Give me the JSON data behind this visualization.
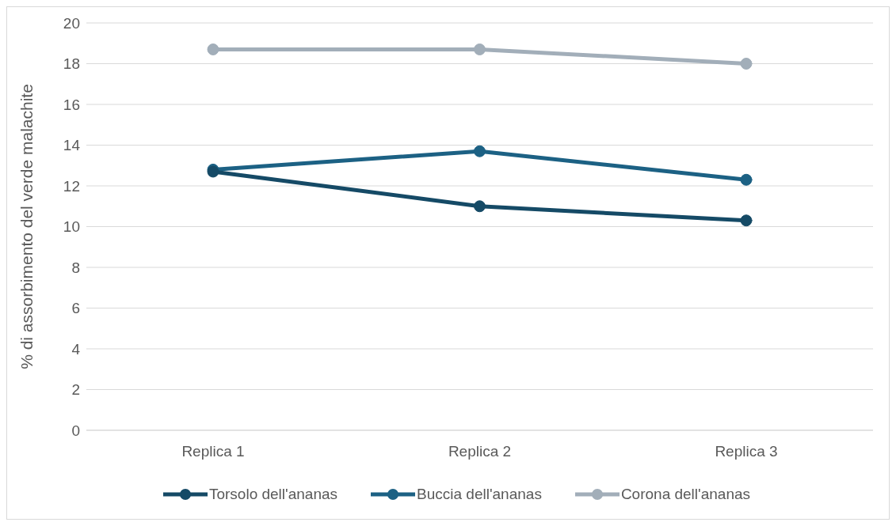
{
  "chart_data": {
    "type": "line",
    "ylabel": "% di assorbimento del verde malachite",
    "categories": [
      "Replica 1",
      "Replica 2",
      "Replica 3"
    ],
    "series": [
      {
        "name": "Torsolo dell'ananas",
        "color": "#154a66",
        "values": [
          12.7,
          11.0,
          10.3
        ]
      },
      {
        "name": "Buccia dell'ananas",
        "color": "#1c6184",
        "values": [
          12.8,
          13.7,
          12.3
        ]
      },
      {
        "name": "Corona dell'ananas",
        "color": "#a2aeb9",
        "values": [
          18.7,
          18.7,
          18.0
        ]
      }
    ],
    "ylim": [
      0,
      20
    ],
    "yticks": [
      0,
      2,
      4,
      6,
      8,
      10,
      12,
      14,
      16,
      18,
      20
    ],
    "grid": "y",
    "legend": "bottom",
    "marker": "circle",
    "line_style": "solid"
  }
}
